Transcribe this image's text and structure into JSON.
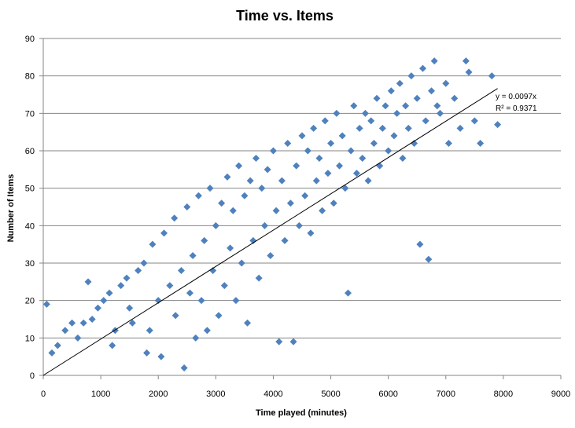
{
  "chart_data": {
    "type": "scatter",
    "title": "Time vs. Items",
    "xlabel": "Time played  (minutes)",
    "ylabel": "Number of Items",
    "xlim": [
      0,
      9000
    ],
    "ylim": [
      0,
      90
    ],
    "x_ticks": [
      0,
      1000,
      2000,
      3000,
      4000,
      5000,
      6000,
      7000,
      8000,
      9000
    ],
    "y_ticks": [
      0,
      10,
      20,
      30,
      40,
      50,
      60,
      70,
      80,
      90
    ],
    "x_tick_labels": [
      "0",
      "1000",
      "2000",
      "3000",
      "4000",
      "5000",
      "6000",
      "7000",
      "8000",
      "9000"
    ],
    "y_tick_labels": [
      "0",
      "10",
      "20",
      "30",
      "40",
      "50",
      "60",
      "70",
      "80",
      "90"
    ],
    "grid": "horizontal",
    "legend": "none",
    "marker": "diamond",
    "marker_color": "#4F81BD",
    "trendline": {
      "type": "linear-through-origin",
      "slope": 0.0097,
      "x_range": [
        0,
        7900
      ],
      "color": "#000000",
      "equation": "y = 0.0097x",
      "r2_label": "R² = 0.9371"
    },
    "series": [
      {
        "values": [
          [
            60,
            19
          ],
          [
            150,
            6
          ],
          [
            250,
            8
          ],
          [
            380,
            12
          ],
          [
            500,
            14
          ],
          [
            600,
            10
          ],
          [
            700,
            14
          ],
          [
            780,
            25
          ],
          [
            850,
            15
          ],
          [
            950,
            18
          ],
          [
            1050,
            20
          ],
          [
            1150,
            22
          ],
          [
            1200,
            8
          ],
          [
            1250,
            12
          ],
          [
            1350,
            24
          ],
          [
            1450,
            26
          ],
          [
            1500,
            18
          ],
          [
            1550,
            14
          ],
          [
            1650,
            28
          ],
          [
            1750,
            30
          ],
          [
            1800,
            6
          ],
          [
            1850,
            12
          ],
          [
            1900,
            35
          ],
          [
            2000,
            20
          ],
          [
            2050,
            5
          ],
          [
            2100,
            38
          ],
          [
            2200,
            24
          ],
          [
            2280,
            42
          ],
          [
            2300,
            16
          ],
          [
            2400,
            28
          ],
          [
            2450,
            2
          ],
          [
            2500,
            45
          ],
          [
            2550,
            22
          ],
          [
            2600,
            32
          ],
          [
            2650,
            10
          ],
          [
            2700,
            48
          ],
          [
            2750,
            20
          ],
          [
            2800,
            36
          ],
          [
            2850,
            12
          ],
          [
            2900,
            50
          ],
          [
            2950,
            28
          ],
          [
            3000,
            40
          ],
          [
            3050,
            16
          ],
          [
            3100,
            46
          ],
          [
            3150,
            24
          ],
          [
            3200,
            53
          ],
          [
            3250,
            34
          ],
          [
            3300,
            44
          ],
          [
            3350,
            20
          ],
          [
            3400,
            56
          ],
          [
            3450,
            30
          ],
          [
            3500,
            48
          ],
          [
            3550,
            14
          ],
          [
            3600,
            52
          ],
          [
            3650,
            36
          ],
          [
            3700,
            58
          ],
          [
            3750,
            26
          ],
          [
            3800,
            50
          ],
          [
            3850,
            40
          ],
          [
            3900,
            55
          ],
          [
            3950,
            32
          ],
          [
            4000,
            60
          ],
          [
            4050,
            44
          ],
          [
            4100,
            9
          ],
          [
            4150,
            52
          ],
          [
            4200,
            36
          ],
          [
            4250,
            62
          ],
          [
            4300,
            46
          ],
          [
            4350,
            9
          ],
          [
            4400,
            56
          ],
          [
            4450,
            40
          ],
          [
            4500,
            64
          ],
          [
            4550,
            48
          ],
          [
            4600,
            60
          ],
          [
            4650,
            38
          ],
          [
            4700,
            66
          ],
          [
            4750,
            52
          ],
          [
            4800,
            58
          ],
          [
            4850,
            44
          ],
          [
            4900,
            68
          ],
          [
            4950,
            54
          ],
          [
            5000,
            62
          ],
          [
            5050,
            46
          ],
          [
            5100,
            70
          ],
          [
            5150,
            56
          ],
          [
            5200,
            64
          ],
          [
            5250,
            50
          ],
          [
            5300,
            22
          ],
          [
            5350,
            60
          ],
          [
            5400,
            72
          ],
          [
            5450,
            54
          ],
          [
            5500,
            66
          ],
          [
            5550,
            58
          ],
          [
            5600,
            70
          ],
          [
            5650,
            52
          ],
          [
            5700,
            68
          ],
          [
            5750,
            62
          ],
          [
            5800,
            74
          ],
          [
            5850,
            56
          ],
          [
            5900,
            66
          ],
          [
            5950,
            72
          ],
          [
            6000,
            60
          ],
          [
            6050,
            76
          ],
          [
            6100,
            64
          ],
          [
            6150,
            70
          ],
          [
            6200,
            78
          ],
          [
            6250,
            58
          ],
          [
            6300,
            72
          ],
          [
            6350,
            66
          ],
          [
            6400,
            80
          ],
          [
            6450,
            62
          ],
          [
            6500,
            74
          ],
          [
            6550,
            35
          ],
          [
            6600,
            82
          ],
          [
            6650,
            68
          ],
          [
            6700,
            31
          ],
          [
            6750,
            76
          ],
          [
            6800,
            84
          ],
          [
            6850,
            72
          ],
          [
            6900,
            70
          ],
          [
            7000,
            78
          ],
          [
            7050,
            62
          ],
          [
            7150,
            74
          ],
          [
            7250,
            66
          ],
          [
            7350,
            84
          ],
          [
            7400,
            81
          ],
          [
            7500,
            68
          ],
          [
            7600,
            62
          ],
          [
            7800,
            80
          ],
          [
            7900,
            67
          ]
        ]
      }
    ]
  }
}
